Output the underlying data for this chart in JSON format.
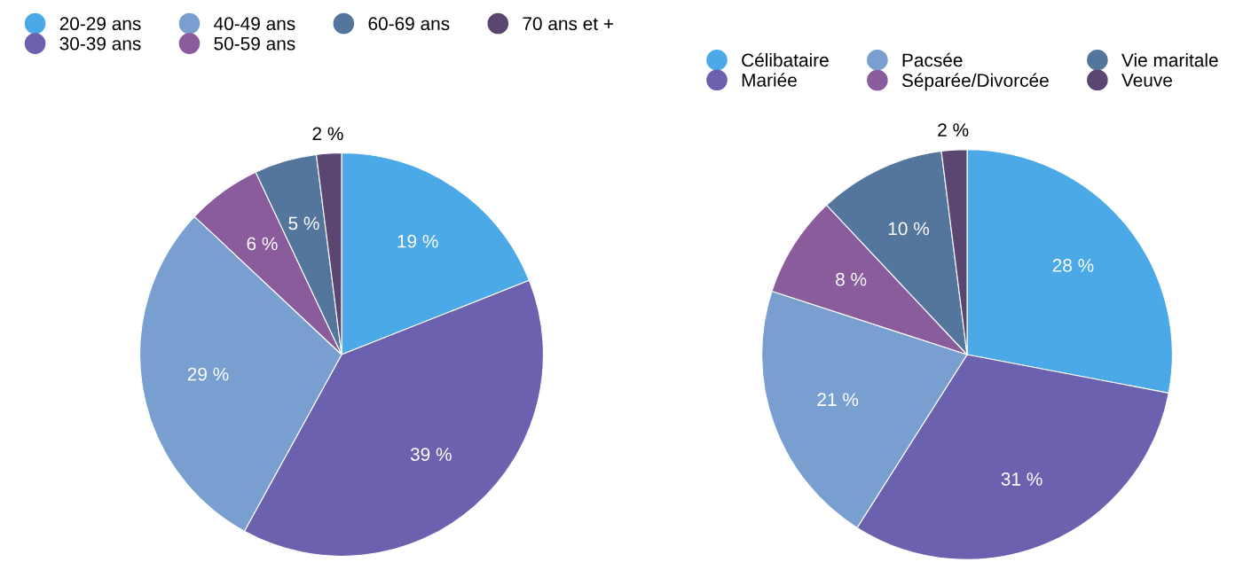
{
  "chart_data": [
    {
      "type": "pie",
      "categories": [
        "20-29 ans",
        "30-39 ans",
        "40-49 ans",
        "50-59 ans",
        "60-69 ans",
        "70 ans et +"
      ],
      "values": [
        19,
        39,
        29,
        6,
        5,
        2
      ],
      "colors": [
        "#4ba9e8",
        "#6c61ae",
        "#789fd0",
        "#8a5c9c",
        "#54769c",
        "#5a4670"
      ],
      "value_labels": [
        "19 %",
        "39 %",
        "29 %",
        "6 %",
        "5 %",
        "2 %"
      ],
      "legend": "top left"
    },
    {
      "type": "pie",
      "categories": [
        "Célibataire",
        "Mariée",
        "Pacsée",
        "Séparée/Divorcée",
        "Vie maritale",
        "Veuve"
      ],
      "values": [
        28,
        31,
        21,
        8,
        10,
        2
      ],
      "colors": [
        "#4ba9e8",
        "#6c61ae",
        "#789fd0",
        "#8a5c9c",
        "#54769c",
        "#5a4670"
      ],
      "value_labels": [
        "28 %",
        "31 %",
        "21 %",
        "8 %",
        "10 %",
        "2 %"
      ],
      "legend": "top right"
    }
  ]
}
